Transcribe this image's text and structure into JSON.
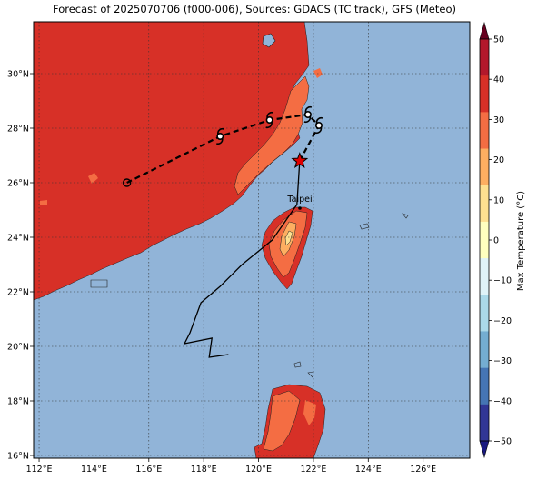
{
  "title": "Forecast of 2025070706 (f000-006), Sources: GDACS (TC track), GFS (Meteo)",
  "map": {
    "lon_ticks": [
      "112°E",
      "114°E",
      "116°E",
      "118°E",
      "120°E",
      "122°E",
      "124°E",
      "126°E"
    ],
    "lat_ticks": [
      "30°N",
      "28°N",
      "26°N",
      "24°N",
      "22°N",
      "20°N",
      "18°N",
      "16°N"
    ],
    "lon_range": [
      111.8,
      127.7
    ],
    "lat_range": [
      15.9,
      31.9
    ],
    "grid": true,
    "city_label": "Taipei",
    "colors": {
      "sea": "#91b4d8",
      "land_hot": "#d73027",
      "land_warm": "#f46d43",
      "land_mild": "#fdae61",
      "land_cool": "#fee090"
    }
  },
  "track": {
    "forecast_points": [
      {
        "lon": 115.2,
        "lat": 26.0
      },
      {
        "lon": 118.6,
        "lat": 27.7
      },
      {
        "lon": 120.4,
        "lat": 28.3
      },
      {
        "lon": 121.8,
        "lat": 28.5
      },
      {
        "lon": 122.2,
        "lat": 28.1
      }
    ],
    "current_position": {
      "lon": 121.5,
      "lat": 26.8
    },
    "past_track": [
      {
        "lon": 121.5,
        "lat": 26.8
      },
      {
        "lon": 121.4,
        "lat": 25.2
      },
      {
        "lon": 120.5,
        "lat": 23.9
      },
      {
        "lon": 119.4,
        "lat": 23.0
      },
      {
        "lon": 118.6,
        "lat": 22.2
      },
      {
        "lon": 117.9,
        "lat": 21.6
      },
      {
        "lon": 117.5,
        "lat": 20.5
      },
      {
        "lon": 117.3,
        "lat": 20.1
      },
      {
        "lon": 118.3,
        "lat": 20.3
      },
      {
        "lon": 118.2,
        "lat": 19.6
      },
      {
        "lon": 118.9,
        "lat": 19.7
      }
    ]
  },
  "colorbar": {
    "label": "Max Temperature (°C)",
    "ticks": [
      "50",
      "40",
      "30",
      "20",
      "10",
      "0",
      "−10",
      "−20",
      "−30",
      "−40",
      "−50"
    ],
    "colors": [
      "#67001f",
      "#b2182b",
      "#d73027",
      "#f46d43",
      "#fdae61",
      "#fee090",
      "#ffffbf",
      "#e0f3f8",
      "#abd9e9",
      "#74add1",
      "#4575b4",
      "#313695",
      "#1a1a80"
    ]
  }
}
